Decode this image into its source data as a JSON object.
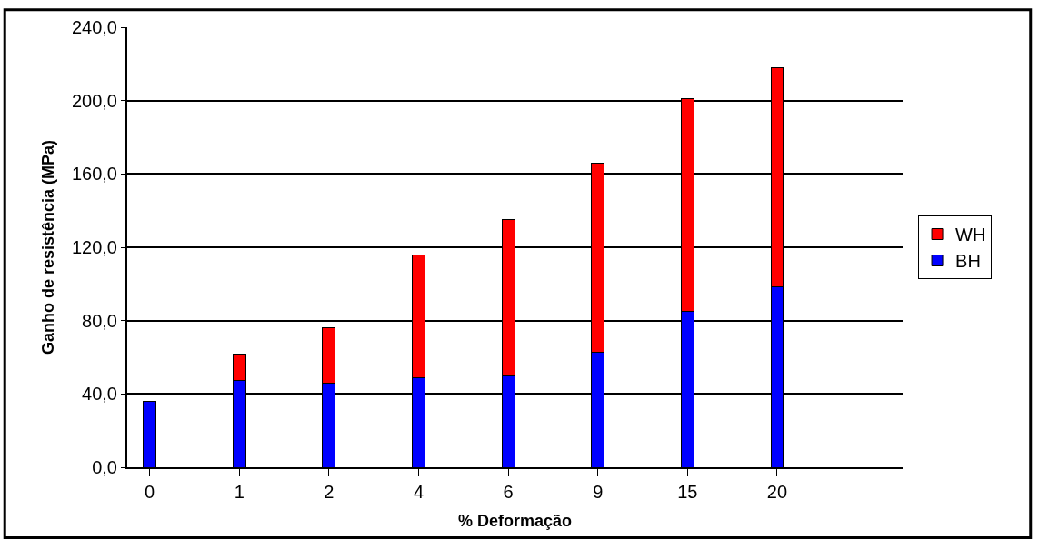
{
  "chart_data": {
    "type": "bar",
    "stacked": true,
    "xlabel": "% Deformação",
    "ylabel": "Ganho de resistência (MPa)",
    "categories": [
      "0",
      "1",
      "2",
      "4",
      "6",
      "9",
      "15",
      "20"
    ],
    "series": [
      {
        "name": "BH",
        "color": "#0000ff",
        "values": [
          36,
          47.5,
          46,
          49,
          50,
          62.5,
          85,
          98.5
        ]
      },
      {
        "name": "WH",
        "color": "#ff0000",
        "values": [
          null,
          14,
          30,
          67,
          85,
          103.5,
          116,
          119.5
        ]
      }
    ],
    "ylim": [
      0,
      240
    ],
    "yticks": [
      {
        "value": 0,
        "label": "0,0"
      },
      {
        "value": 40,
        "label": "40,0"
      },
      {
        "value": 80,
        "label": "80,0"
      },
      {
        "value": 120,
        "label": "120,0"
      },
      {
        "value": 160,
        "label": "160,0"
      },
      {
        "value": 200,
        "label": "200,0"
      },
      {
        "value": 240,
        "label": "240,0"
      }
    ],
    "grid": "y",
    "legend": "right"
  }
}
